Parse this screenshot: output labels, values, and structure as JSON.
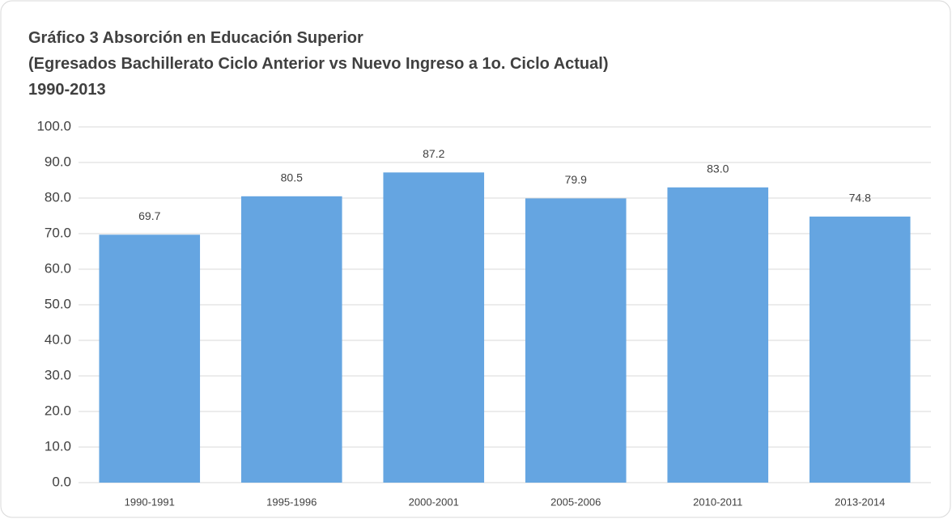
{
  "chart_data": {
    "type": "bar",
    "title": [
      "Gráfico 3 Absorción en Educación Superior",
      "(Egresados Bachillerato Ciclo Anterior vs Nuevo Ingreso a 1o. Ciclo Actual)",
      "1990-2013"
    ],
    "categories": [
      "1990-1991",
      "1995-1996",
      "2000-2001",
      "2005-2006",
      "2010-2011",
      "2013-2014"
    ],
    "values": [
      69.7,
      80.5,
      87.2,
      79.9,
      83.0,
      74.8
    ],
    "value_labels": [
      "69.7",
      "80.5",
      "87.2",
      "79.9",
      "83.0",
      "74.8"
    ],
    "color": "#65a5e1",
    "ylim": [
      0,
      100
    ],
    "yticks": [
      {
        "value": 0,
        "label": "0.0"
      },
      {
        "value": 10,
        "label": "10.0"
      },
      {
        "value": 20,
        "label": "20.0"
      },
      {
        "value": 30,
        "label": "30.0"
      },
      {
        "value": 40,
        "label": "40.0"
      },
      {
        "value": 50,
        "label": "50.0"
      },
      {
        "value": 60,
        "label": "60.0"
      },
      {
        "value": 70,
        "label": "70.0"
      },
      {
        "value": 80,
        "label": "80.0"
      },
      {
        "value": 90,
        "label": "90.0"
      },
      {
        "value": 100,
        "label": "100.0"
      }
    ],
    "grid": true
  }
}
